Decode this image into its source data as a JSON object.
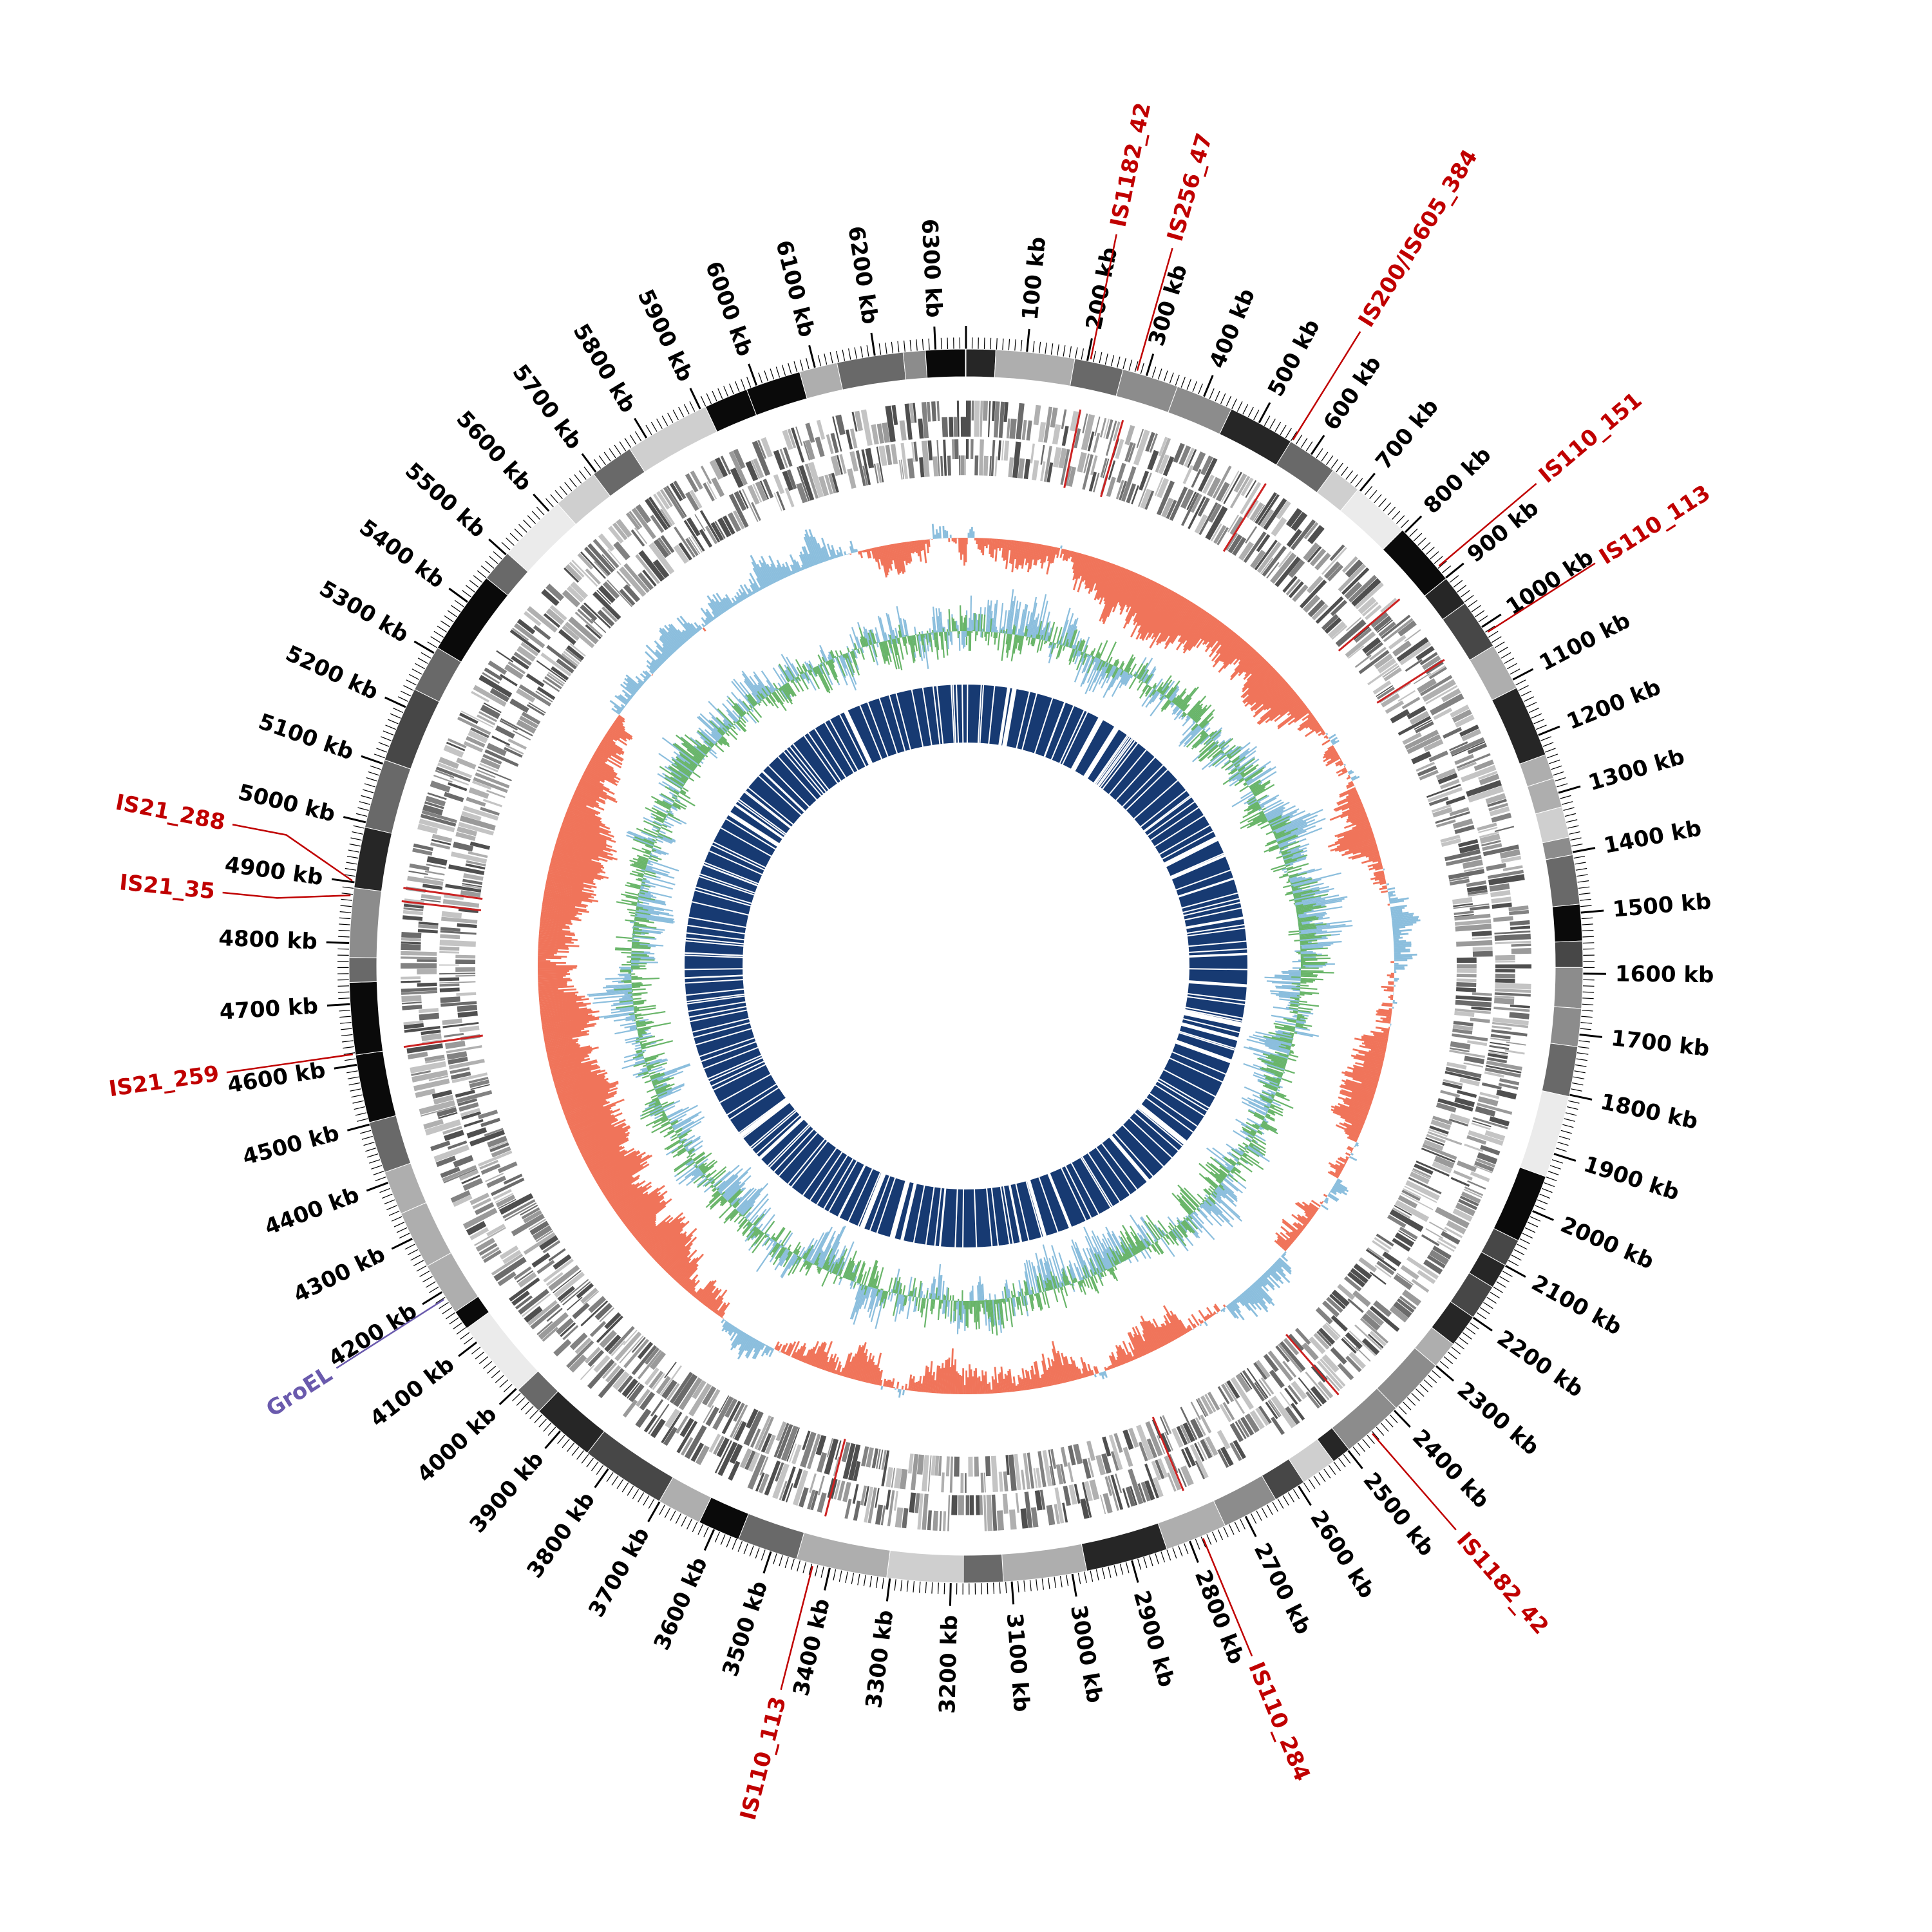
{
  "chart_data": {
    "type": "circos",
    "description": "Circular bacterial genome map with ideogram, gene tracks, GC plots and coverage ring",
    "genome_length_kb": 6350,
    "unit": "kb",
    "major_tick_kb": 100,
    "minor_tick_kb": 10,
    "tick_labels": [
      "100 kb",
      "200 kb",
      "300 kb",
      "400 kb",
      "500 kb",
      "600 kb",
      "700 kb",
      "800 kb",
      "900 kb",
      "1000 kb",
      "1100 kb",
      "1200 kb",
      "1300 kb",
      "1400 kb",
      "1500 kb",
      "1600 kb",
      "1700 kb",
      "1800 kb",
      "1900 kb",
      "2000 kb",
      "2100 kb",
      "2200 kb",
      "2300 kb",
      "2400 kb",
      "2500 kb",
      "2600 kb",
      "2700 kb",
      "2800 kb",
      "2900 kb",
      "3000 kb",
      "3100 kb",
      "3200 kb",
      "3300 kb",
      "3400 kb",
      "3500 kb",
      "3600 kb",
      "3700 kb",
      "3800 kb",
      "3900 kb",
      "4000 kb",
      "4100 kb",
      "4200 kb",
      "4300 kb",
      "4400 kb",
      "4500 kb",
      "4600 kb",
      "4700 kb",
      "4800 kb",
      "4900 kb",
      "5000 kb",
      "5100 kb",
      "5200 kb",
      "5300 kb",
      "5400 kb",
      "5500 kb",
      "5600 kb",
      "5700 kb",
      "5800 kb",
      "5900 kb",
      "6000 kb",
      "6100 kb",
      "6200 kb",
      "6300 kb"
    ],
    "rings": [
      {
        "name": "ideogram",
        "type": "segments",
        "r_inner": 915,
        "r_outer": 958,
        "palette": [
          "#0a0a0a",
          "#262626",
          "#474747",
          "#696969",
          "#8c8c8c",
          "#aeaeae",
          "#cfcfcf",
          "#ebebeb"
        ]
      },
      {
        "name": "genes-forward",
        "type": "tiles",
        "r_inner": 822,
        "r_outer": 878,
        "palette": [
          "#4f4f4f",
          "#6b6b6b",
          "#828282",
          "#9a9a9a",
          "#b0b0b0",
          "#c4c4c4"
        ]
      },
      {
        "name": "genes-reverse",
        "type": "tiles",
        "r_inner": 762,
        "r_outer": 818,
        "palette": [
          "#4f4f4f",
          "#6b6b6b",
          "#828282",
          "#9a9a9a",
          "#b0b0b0",
          "#c4c4c4"
        ]
      },
      {
        "name": "gc-content",
        "type": "histogram-diverging",
        "baseline_r": 665,
        "outward_color": "#8bbedd",
        "inward_color": "#f0745a",
        "outward_amp": 82,
        "inward_amp": 88
      },
      {
        "name": "gc-skew",
        "type": "histogram-dual",
        "baseline_r": 520,
        "green_color": "#69b569",
        "blue_color": "#8bbedd",
        "amp": 72
      },
      {
        "name": "coverage",
        "type": "solid-ring",
        "r_inner": 347,
        "r_outer": 437,
        "color": "#173a72",
        "gap_color": "#ffffff"
      }
    ],
    "annotation_color_default": "#c00000",
    "annotations": [
      {
        "label": "IS1182_42",
        "kb": 205
      },
      {
        "label": "IS256_47",
        "kb": 283
      },
      {
        "label": "IS200/IS605_384",
        "kb": 562
      },
      {
        "label": "IS110_151",
        "kb": 878
      },
      {
        "label": "IS110_113",
        "kb": 1012
      },
      {
        "label": "IS1182_42",
        "kb": 2452
      },
      {
        "label": "IS110_284",
        "kb": 2778
      },
      {
        "label": "IS110_113",
        "kb": 3428
      },
      {
        "label": "GroEL",
        "kb": 4188,
        "color": "#6a5aad"
      },
      {
        "label": "IS21_259",
        "kb": 4618
      },
      {
        "label": "IS21_35",
        "kb": 4878,
        "label_kb": 4862
      },
      {
        "label": "IS21_288",
        "kb": 4902,
        "label_kb": 4955
      }
    ],
    "styles": {
      "tick_color": "#000000",
      "tick_label_font_px": 34,
      "annotation_font_px": 34,
      "background": "#ffffff"
    }
  }
}
